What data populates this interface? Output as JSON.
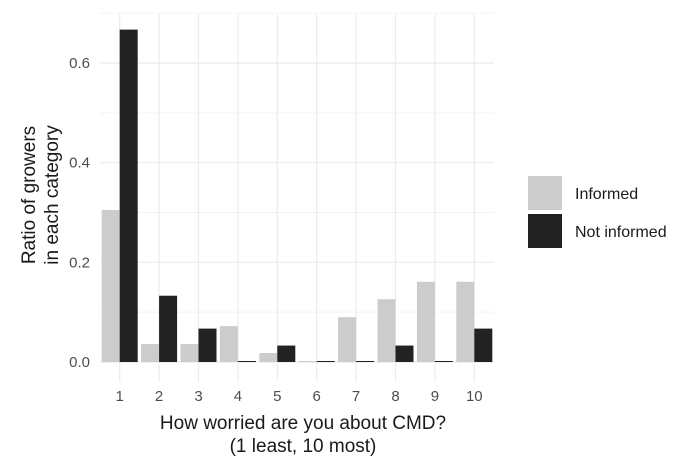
{
  "chart_data": {
    "type": "bar",
    "categories": [
      "1",
      "2",
      "3",
      "4",
      "5",
      "6",
      "7",
      "8",
      "9",
      "10"
    ],
    "series": [
      {
        "name": "Informed",
        "color": "#cccccc",
        "values": [
          0.305,
          0.036,
          0.036,
          0.072,
          0.018,
          0.002,
          0.09,
          0.126,
          0.161,
          0.161
        ]
      },
      {
        "name": "Not informed",
        "color": "#222222",
        "values": [
          0.667,
          0.133,
          0.067,
          0.002,
          0.033,
          0.002,
          0.002,
          0.033,
          0.002,
          0.067
        ]
      }
    ],
    "xlabel": [
      "How worried are you about CMD?",
      "(1 least, 10 most)"
    ],
    "ylabel": [
      "Ratio of growers",
      "in each category"
    ],
    "ylim": [
      0,
      0.72
    ],
    "yticks": [
      0.0,
      0.2,
      0.4,
      0.6
    ],
    "ytick_labels": [
      "0.0",
      "0.2",
      "0.4",
      "0.6"
    ],
    "grid": true,
    "legend": "right"
  }
}
